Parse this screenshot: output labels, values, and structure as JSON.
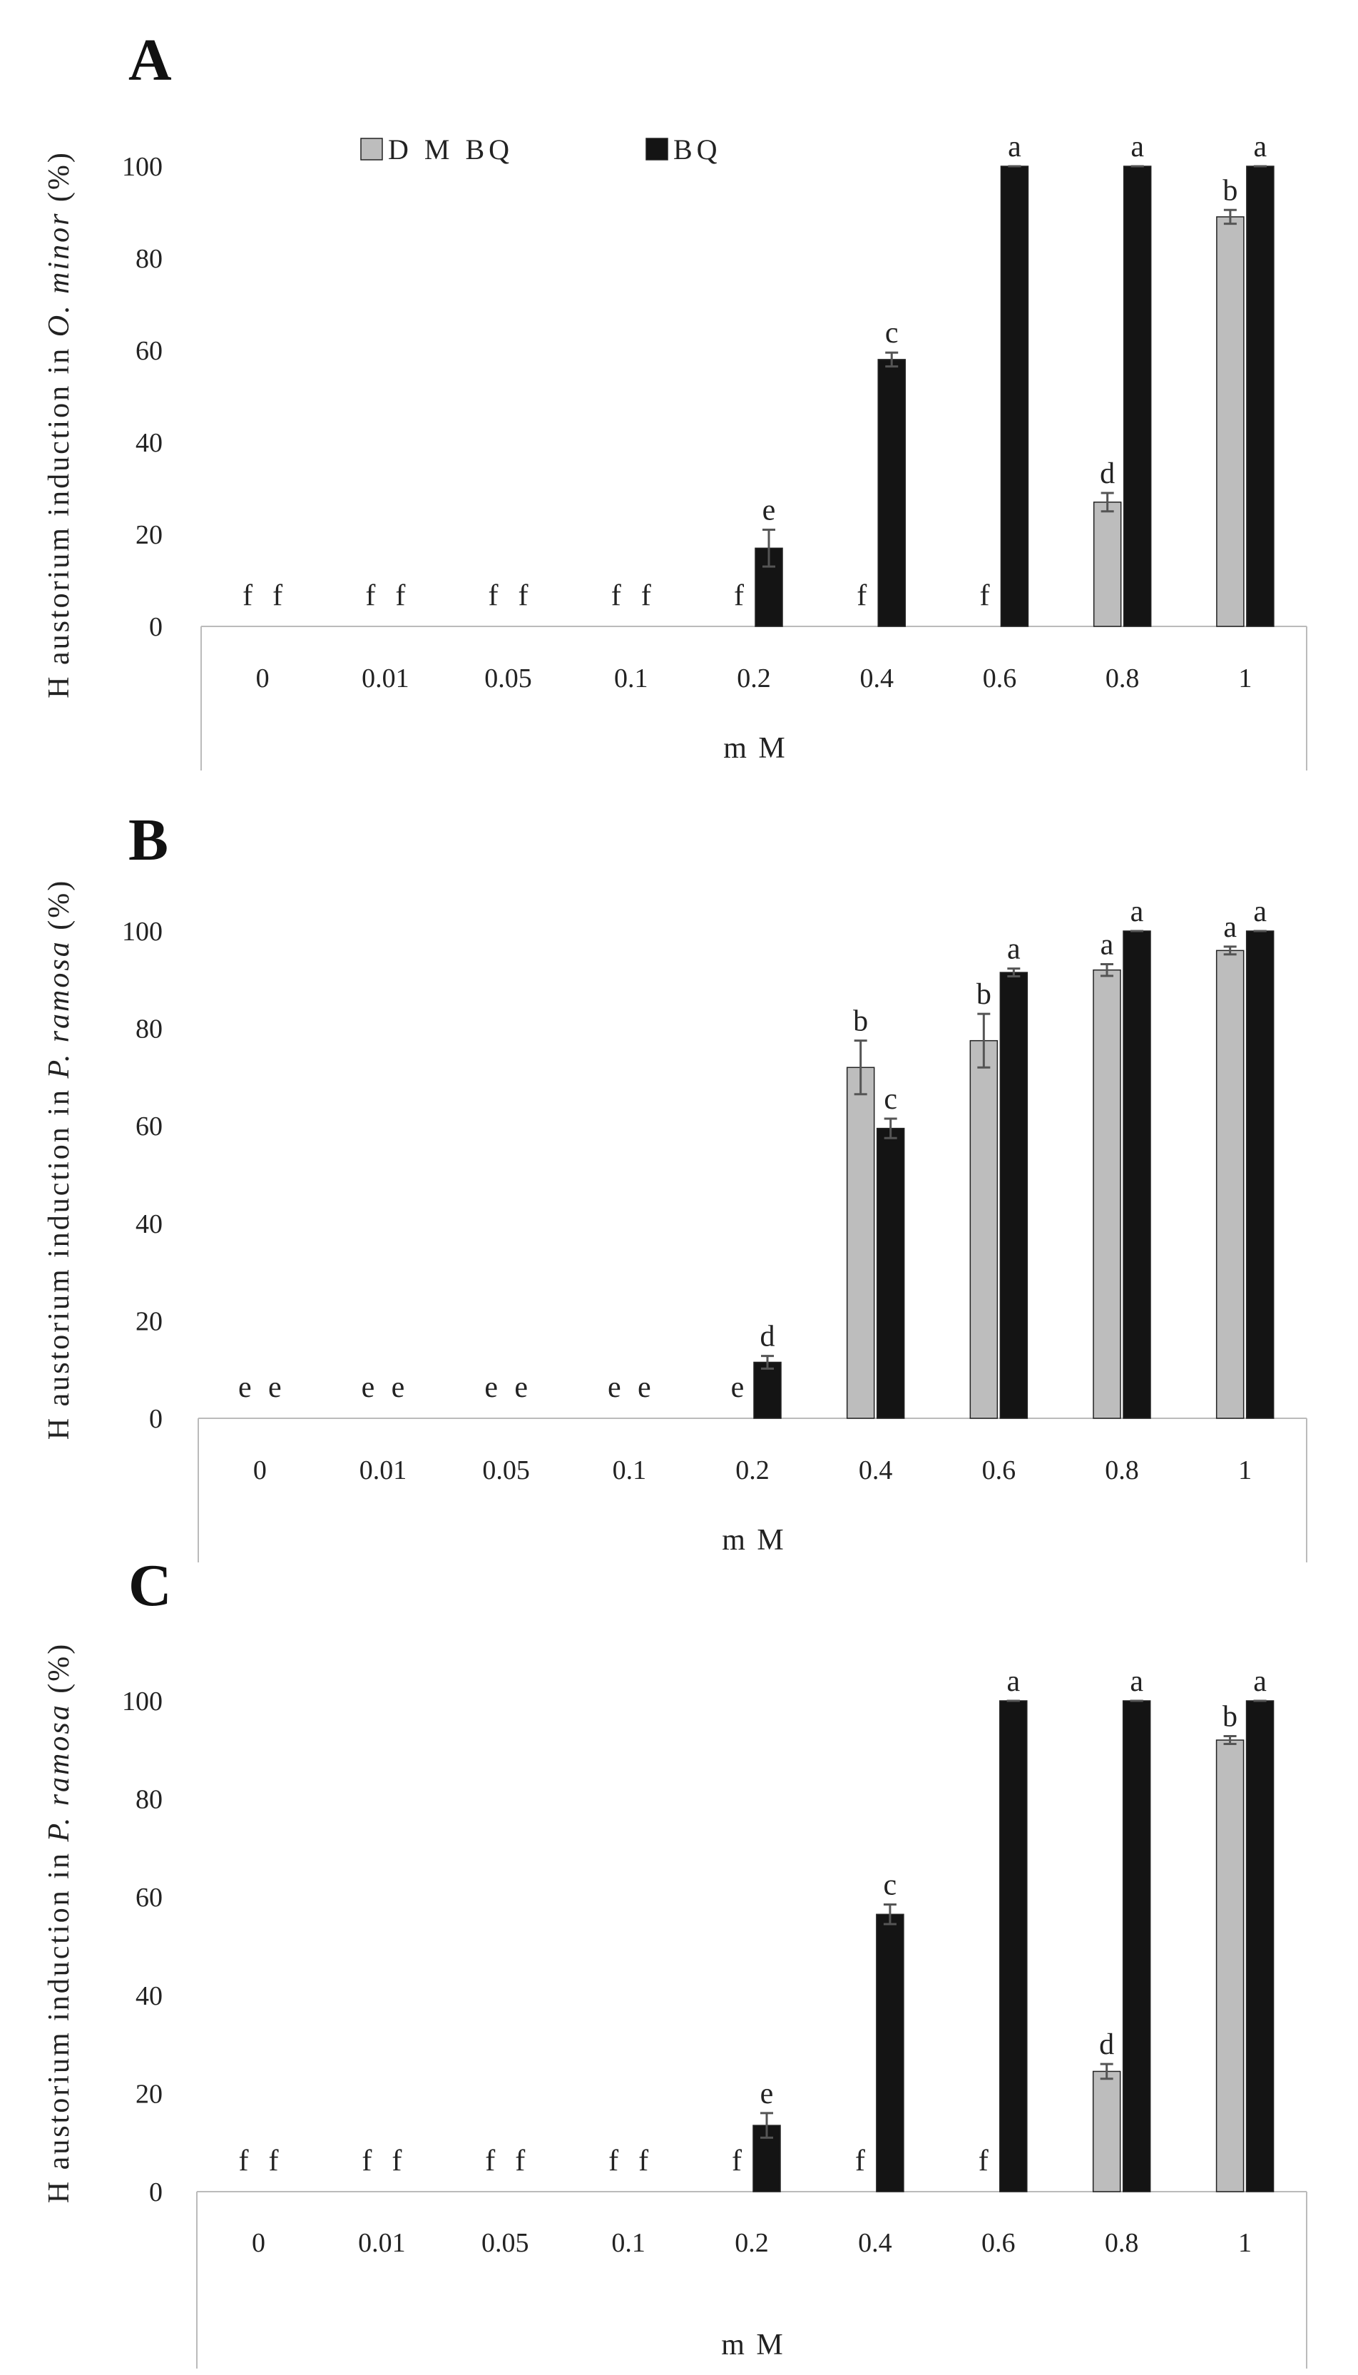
{
  "colors": {
    "DMBQ": "#bdbdbd",
    "BQ": "#141414",
    "axis": "#bbbbbb",
    "error": "#555555"
  },
  "legend": [
    {
      "name": "DMBQ",
      "label": "D M BQ"
    },
    {
      "name": "BQ",
      "label": "BQ"
    }
  ],
  "chart_data": [
    {
      "type": "bar",
      "panel": "A",
      "title": "",
      "ylabel": {
        "prefix": "H austorium  induction in ",
        "species": "O. minor",
        "suffix": " (%)"
      },
      "xlabel": "m M",
      "categories": [
        "0",
        "0.01",
        "0.05",
        "0.1",
        "0.2",
        "0.4",
        "0.6",
        "0.8",
        "1"
      ],
      "ylim": [
        0,
        100
      ],
      "yticks": [
        "0",
        "20",
        "40",
        "60",
        "80",
        "100"
      ],
      "series": [
        {
          "name": "DMBQ",
          "values": [
            0,
            0,
            0,
            0,
            0,
            0,
            0,
            27,
            89
          ],
          "errors": [
            0,
            0,
            0,
            0,
            0,
            0,
            0,
            2,
            1.5
          ],
          "letters": [
            "f",
            "f",
            "f",
            "f",
            "f",
            "f",
            "f",
            "d",
            "b"
          ]
        },
        {
          "name": "BQ",
          "values": [
            0,
            0,
            0,
            0,
            17,
            58,
            100,
            100,
            100
          ],
          "errors": [
            0,
            0,
            0,
            0,
            4,
            1.5,
            0,
            0,
            0
          ],
          "letters": [
            "f",
            "f",
            "f",
            "f",
            "e",
            "c",
            "a",
            "a",
            "a"
          ]
        }
      ]
    },
    {
      "type": "bar",
      "panel": "B",
      "title": "",
      "ylabel": {
        "prefix": "H austorium  induction in ",
        "species": "P. ramosa",
        "suffix": " (%)"
      },
      "xlabel": "m M",
      "categories": [
        "0",
        "0.01",
        "0.05",
        "0.1",
        "0.2",
        "0.4",
        "0.6",
        "0.8",
        "1"
      ],
      "ylim": [
        0,
        100
      ],
      "yticks": [
        "0",
        "20",
        "40",
        "60",
        "80",
        "100"
      ],
      "series": [
        {
          "name": "DMBQ",
          "values": [
            0,
            0,
            0,
            0,
            0,
            72,
            77.5,
            92,
            96
          ],
          "errors": [
            0,
            0,
            0,
            0,
            0,
            5.5,
            5.5,
            1.2,
            0.8
          ],
          "letters": [
            "e",
            "e",
            "e",
            "e",
            "e",
            "b",
            "b",
            "a",
            "a"
          ]
        },
        {
          "name": "BQ",
          "values": [
            0,
            0,
            0,
            0,
            11.5,
            59.5,
            91.5,
            100,
            100
          ],
          "errors": [
            0,
            0,
            0,
            0,
            1.3,
            2,
            0.8,
            0,
            0
          ],
          "letters": [
            "e",
            "e",
            "e",
            "e",
            "d",
            "c",
            "a",
            "a",
            "a"
          ]
        }
      ]
    },
    {
      "type": "bar",
      "panel": "C",
      "title": "",
      "ylabel": {
        "prefix": "H austorium  induction in ",
        "species": "P. ramosa",
        "suffix": " (%)"
      },
      "xlabel": "m M",
      "categories": [
        "0",
        "0.01",
        "0.05",
        "0.1",
        "0.2",
        "0.4",
        "0.6",
        "0.8",
        "1"
      ],
      "ylim": [
        0,
        100
      ],
      "yticks": [
        "0",
        "20",
        "40",
        "60",
        "80",
        "100"
      ],
      "series": [
        {
          "name": "DMBQ",
          "values": [
            0,
            0,
            0,
            0,
            0,
            0,
            0,
            24.5,
            92
          ],
          "errors": [
            0,
            0,
            0,
            0,
            0,
            0,
            0,
            1.5,
            0.8
          ],
          "letters": [
            "f",
            "f",
            "f",
            "f",
            "f",
            "f",
            "f",
            "d",
            "b"
          ]
        },
        {
          "name": "BQ",
          "values": [
            0,
            0,
            0,
            0,
            13.5,
            56.5,
            100,
            100,
            100
          ],
          "errors": [
            0,
            0,
            0,
            0,
            2.5,
            2,
            0,
            0,
            0
          ],
          "letters": [
            "f",
            "f",
            "f",
            "f",
            "e",
            "c",
            "a",
            "a",
            "a"
          ]
        }
      ]
    }
  ]
}
